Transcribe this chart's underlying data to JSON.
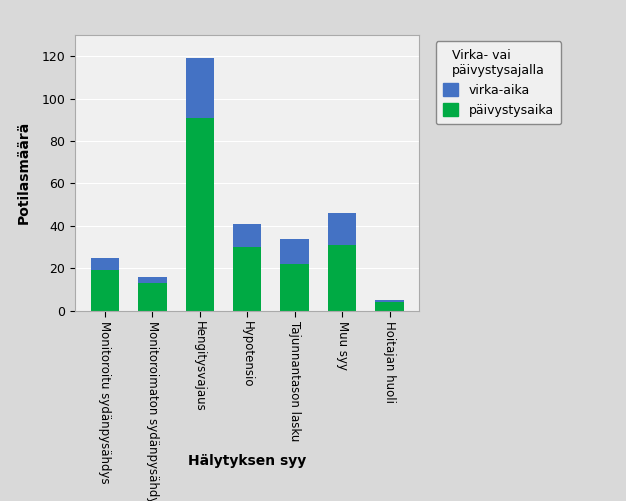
{
  "categories": [
    "Monitoroitu sydänpysähdys",
    "Monitoroimaton sydänpysähdys",
    "Hengitysvajaus",
    "Hypotensio",
    "Tajunnantason lasku",
    "Muu syy",
    "Hoitajan huoli"
  ],
  "virka_aika": [
    6,
    3,
    28,
    11,
    12,
    15,
    1
  ],
  "paivystysaika": [
    19,
    13,
    91,
    30,
    22,
    31,
    4
  ],
  "color_virka": "#4472c4",
  "color_paivystys": "#00aa44",
  "xlabel": "Hälytyksen syy",
  "ylabel": "Potilasmäärä",
  "legend_title": "Virka- vai\npäivystysajalla",
  "legend_virka": "virka-aika",
  "legend_paivystys": "päivystysaika",
  "ylim": [
    0,
    130
  ],
  "yticks": [
    0,
    20,
    40,
    60,
    80,
    100,
    120
  ],
  "fig_bg_color": "#d9d9d9",
  "plot_bg_color": "#f0f0f0",
  "legend_bg_color": "#f0f0f0"
}
